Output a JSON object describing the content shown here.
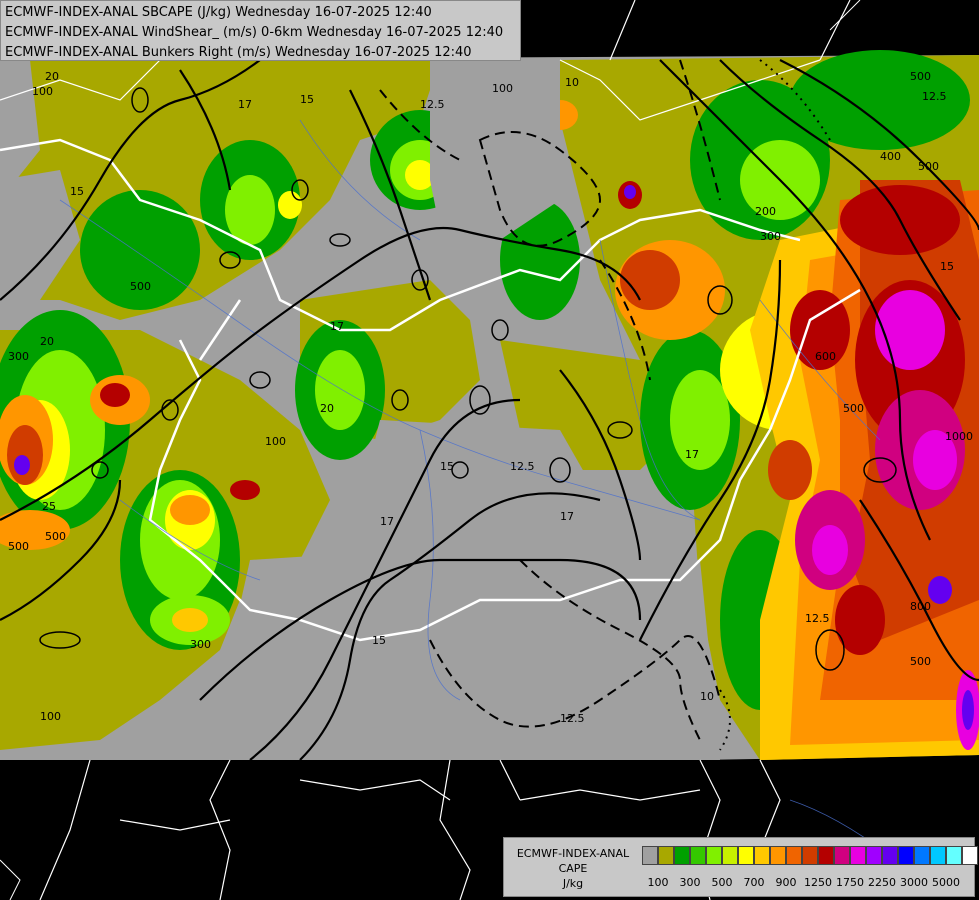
{
  "titles": [
    "ECMWF-INDEX-ANAL SBCAPE (J/kg) Wednesday 16-07-2025 12:40",
    "ECMWF-INDEX-ANAL WindShear_ (m/s) 0-6km Wednesday 16-07-2025 12:40",
    "ECMWF-INDEX-ANAL Bunkers Right (m/s) Wednesday 16-07-2025 12:40"
  ],
  "legend": {
    "line1": "ECMWF-INDEX-ANAL",
    "line2": "CAPE",
    "line3": "J/kg",
    "colors": [
      "#a0a0a0",
      "#a8a800",
      "#00a000",
      "#34c800",
      "#80f000",
      "#c8f000",
      "#ffff00",
      "#ffc800",
      "#ff9600",
      "#f06400",
      "#d03c00",
      "#b40000",
      "#d00080",
      "#e800e0",
      "#a000ff",
      "#6400f0",
      "#0000ff",
      "#0078ff",
      "#00c8ff",
      "#64ffff",
      "#ffffff"
    ],
    "ticks": [
      "100",
      "300",
      "500",
      "700",
      "900",
      "1250",
      "1750",
      "2250",
      "3000",
      "5000"
    ]
  },
  "contour_labels": [
    "20",
    "100",
    "15",
    "17",
    "12.5",
    "10",
    "500",
    "200",
    "300",
    "600",
    "1000",
    "400",
    "800"
  ]
}
